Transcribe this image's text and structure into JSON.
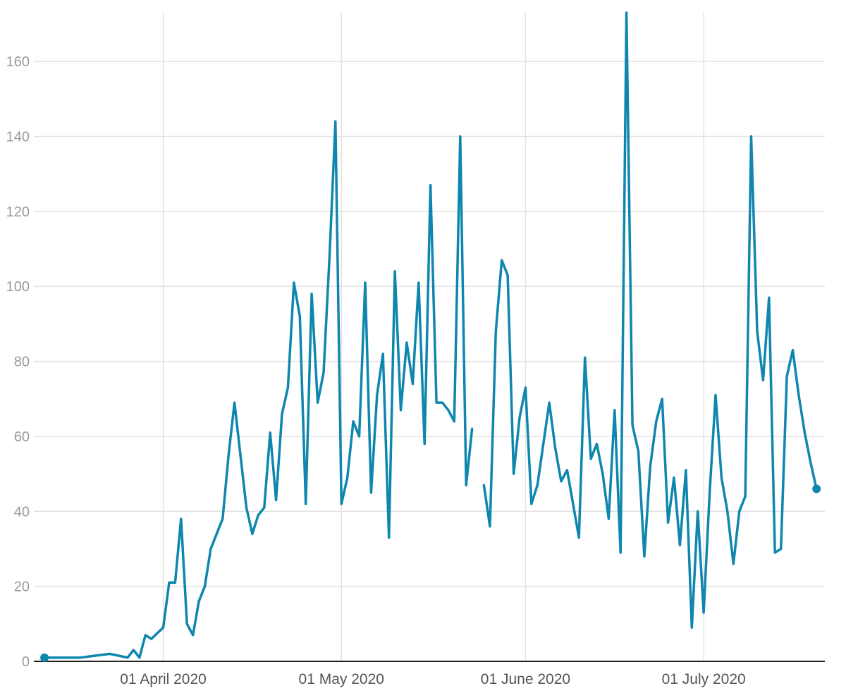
{
  "chart_data": {
    "type": "line",
    "title": "",
    "xlabel": "",
    "ylabel": "",
    "x_start": "2020-03-12",
    "x_end": "2020-07-21",
    "ylim": [
      0,
      173
    ],
    "y_ticks": [
      0,
      20,
      40,
      60,
      80,
      100,
      120,
      140,
      160
    ],
    "x_ticks": [
      {
        "date": "2020-04-01",
        "label": "01 April 2020"
      },
      {
        "date": "2020-05-01",
        "label": "01 May 2020"
      },
      {
        "date": "2020-06-01",
        "label": "01 June 2020"
      },
      {
        "date": "2020-07-01",
        "label": "01 July 2020"
      }
    ],
    "grid": true,
    "color": "#0e86ae",
    "endpoint_markers": true,
    "series": [
      {
        "values": [
          [
            "2020-03-12",
            1
          ],
          [
            "2020-03-13",
            1
          ],
          [
            "2020-03-18",
            1
          ],
          [
            "2020-03-23",
            2
          ],
          [
            "2020-03-26",
            1
          ],
          [
            "2020-03-27",
            3
          ],
          [
            "2020-03-28",
            1
          ],
          [
            "2020-03-29",
            7
          ],
          [
            "2020-03-30",
            6
          ],
          [
            "2020-04-01",
            9
          ],
          [
            "2020-04-02",
            21
          ],
          [
            "2020-04-03",
            21
          ],
          [
            "2020-04-04",
            38
          ],
          [
            "2020-04-05",
            10
          ],
          [
            "2020-04-06",
            7
          ],
          [
            "2020-04-07",
            16
          ],
          [
            "2020-04-08",
            20
          ],
          [
            "2020-04-09",
            30
          ],
          [
            "2020-04-11",
            38
          ],
          [
            "2020-04-12",
            55
          ],
          [
            "2020-04-13",
            69
          ],
          [
            "2020-04-15",
            41
          ],
          [
            "2020-04-16",
            34
          ],
          [
            "2020-04-17",
            39
          ],
          [
            "2020-04-18",
            41
          ],
          [
            "2020-04-19",
            61
          ],
          [
            "2020-04-20",
            43
          ],
          [
            "2020-04-21",
            66
          ],
          [
            "2020-04-22",
            73
          ],
          [
            "2020-04-23",
            101
          ],
          [
            "2020-04-24",
            92
          ],
          [
            "2020-04-25",
            42
          ],
          [
            "2020-04-26",
            98
          ],
          [
            "2020-04-27",
            69
          ],
          [
            "2020-04-28",
            77
          ],
          [
            "2020-04-29",
            108
          ],
          [
            "2020-04-30",
            144
          ],
          [
            "2020-05-01",
            42
          ],
          [
            "2020-05-02",
            49
          ],
          [
            "2020-05-03",
            64
          ],
          [
            "2020-05-04",
            60
          ],
          [
            "2020-05-05",
            101
          ],
          [
            "2020-05-06",
            45
          ],
          [
            "2020-05-07",
            71
          ],
          [
            "2020-05-08",
            82
          ],
          [
            "2020-05-09",
            33
          ],
          [
            "2020-05-10",
            104
          ],
          [
            "2020-05-11",
            67
          ],
          [
            "2020-05-12",
            85
          ],
          [
            "2020-05-13",
            74
          ],
          [
            "2020-05-14",
            101
          ],
          [
            "2020-05-15",
            58
          ],
          [
            "2020-05-16",
            127
          ],
          [
            "2020-05-17",
            69
          ],
          [
            "2020-05-18",
            69
          ],
          [
            "2020-05-19",
            67
          ],
          [
            "2020-05-20",
            64
          ],
          [
            "2020-05-21",
            140
          ],
          [
            "2020-05-22",
            47
          ],
          [
            "2020-05-23",
            62
          ],
          [
            "2020-05-24",
            null
          ],
          [
            "2020-05-25",
            47
          ],
          [
            "2020-05-26",
            36
          ],
          [
            "2020-05-27",
            88
          ],
          [
            "2020-05-28",
            107
          ],
          [
            "2020-05-29",
            103
          ],
          [
            "2020-05-30",
            50
          ],
          [
            "2020-05-31",
            65
          ],
          [
            "2020-06-01",
            73
          ],
          [
            "2020-06-02",
            42
          ],
          [
            "2020-06-03",
            47
          ],
          [
            "2020-06-04",
            58
          ],
          [
            "2020-06-05",
            69
          ],
          [
            "2020-06-06",
            57
          ],
          [
            "2020-06-07",
            48
          ],
          [
            "2020-06-08",
            51
          ],
          [
            "2020-06-09",
            42
          ],
          [
            "2020-06-10",
            33
          ],
          [
            "2020-06-11",
            81
          ],
          [
            "2020-06-12",
            54
          ],
          [
            "2020-06-13",
            58
          ],
          [
            "2020-06-14",
            50
          ],
          [
            "2020-06-15",
            38
          ],
          [
            "2020-06-16",
            67
          ],
          [
            "2020-06-17",
            29
          ],
          [
            "2020-06-18",
            173
          ],
          [
            "2020-06-19",
            63
          ],
          [
            "2020-06-20",
            56
          ],
          [
            "2020-06-21",
            28
          ],
          [
            "2020-06-22",
            52
          ],
          [
            "2020-06-23",
            64
          ],
          [
            "2020-06-24",
            70
          ],
          [
            "2020-06-25",
            37
          ],
          [
            "2020-06-26",
            49
          ],
          [
            "2020-06-27",
            31
          ],
          [
            "2020-06-28",
            51
          ],
          [
            "2020-06-29",
            9
          ],
          [
            "2020-06-30",
            40
          ],
          [
            "2020-07-01",
            13
          ],
          [
            "2020-07-02",
            45
          ],
          [
            "2020-07-03",
            71
          ],
          [
            "2020-07-04",
            49
          ],
          [
            "2020-07-05",
            40
          ],
          [
            "2020-07-06",
            26
          ],
          [
            "2020-07-07",
            40
          ],
          [
            "2020-07-08",
            44
          ],
          [
            "2020-07-09",
            140
          ],
          [
            "2020-07-10",
            88
          ],
          [
            "2020-07-11",
            75
          ],
          [
            "2020-07-12",
            97
          ],
          [
            "2020-07-13",
            29
          ],
          [
            "2020-07-14",
            30
          ],
          [
            "2020-07-15",
            76
          ],
          [
            "2020-07-16",
            83
          ],
          [
            "2020-07-17",
            71
          ],
          [
            "2020-07-18",
            61
          ],
          [
            "2020-07-19",
            53
          ],
          [
            "2020-07-20",
            46
          ]
        ]
      }
    ]
  }
}
